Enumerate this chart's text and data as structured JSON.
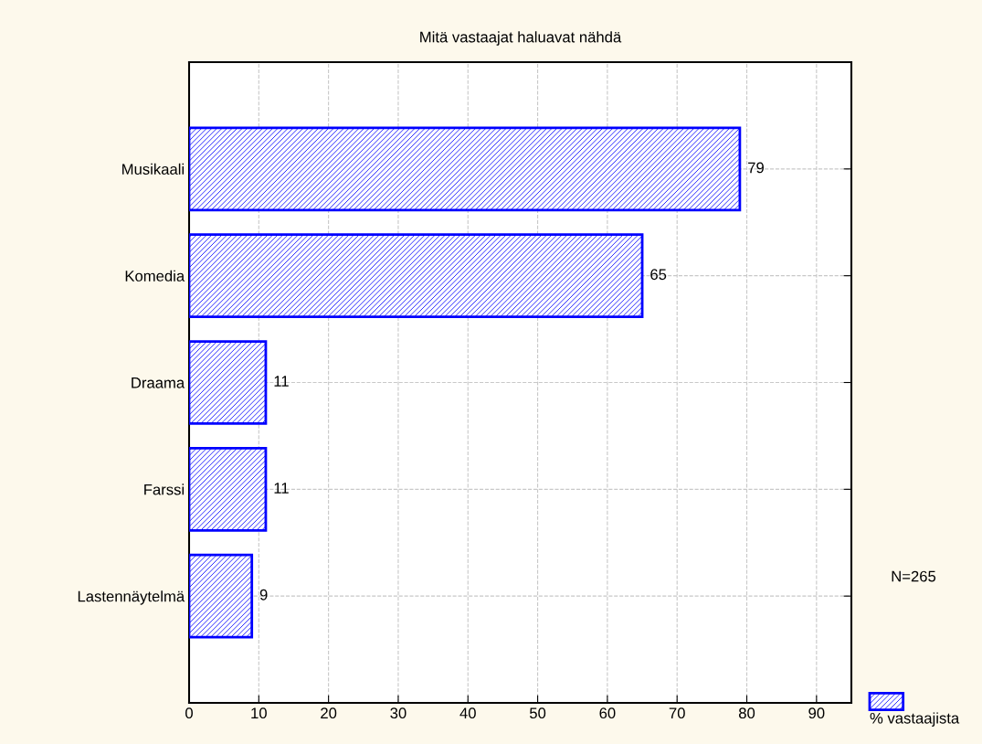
{
  "chart_data": {
    "type": "bar",
    "orientation": "horizontal",
    "title": "Mitä vastaajat haluavat nähdä",
    "categories": [
      "Musikaali",
      "Komedia",
      "Draama",
      "Farssi",
      "Lastennäytelmä"
    ],
    "series": [
      {
        "name": "% vastaajista",
        "color": "#0000ff",
        "values": [
          79,
          65,
          11,
          11,
          9
        ]
      }
    ],
    "xlim": [
      0,
      95
    ],
    "xticks": [
      0,
      10,
      20,
      30,
      40,
      50,
      60,
      70,
      80,
      90
    ],
    "grid": true,
    "data_labels": true,
    "legend": "bottom right",
    "annotations": [
      "N=265"
    ]
  }
}
